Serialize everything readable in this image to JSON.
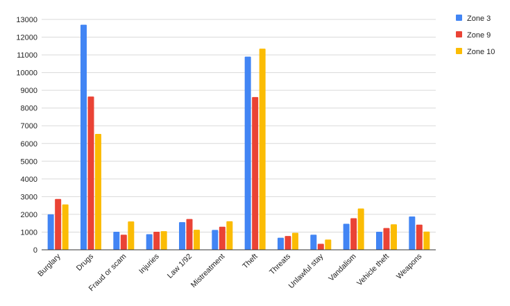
{
  "chart_data": {
    "type": "bar",
    "categories": [
      "Burglary",
      "Drugs",
      "Fraud or scam",
      "Injuries",
      "Law 1/92",
      "Mistreatment",
      "Theft",
      "Threats",
      "Unlawful stay",
      "Vandalism",
      "Vehicle theft",
      "Weapons"
    ],
    "series": [
      {
        "name": "Zone 3",
        "color": "#4285f4",
        "values": [
          2000,
          12700,
          1020,
          880,
          1560,
          1120,
          10900,
          680,
          850,
          1470,
          1020,
          1880
        ]
      },
      {
        "name": "Zone 9",
        "color": "#ea4335",
        "values": [
          2870,
          8650,
          850,
          1020,
          1740,
          1300,
          8620,
          780,
          340,
          1780,
          1230,
          1420
        ]
      },
      {
        "name": "Zone 10",
        "color": "#fbbc04",
        "values": [
          2560,
          6540,
          1600,
          1050,
          1130,
          1610,
          11350,
          960,
          580,
          2330,
          1440,
          1030
        ]
      }
    ],
    "title": "",
    "xlabel": "",
    "ylabel": "",
    "ylim": [
      0,
      13000
    ],
    "yticks": [
      "0",
      "1000",
      "2000",
      "3000",
      "4000",
      "5000",
      "6000",
      "7000",
      "8000",
      "9000",
      "10000",
      "11000",
      "12000",
      "13000"
    ],
    "grid": true,
    "legend_position": "top-right"
  }
}
